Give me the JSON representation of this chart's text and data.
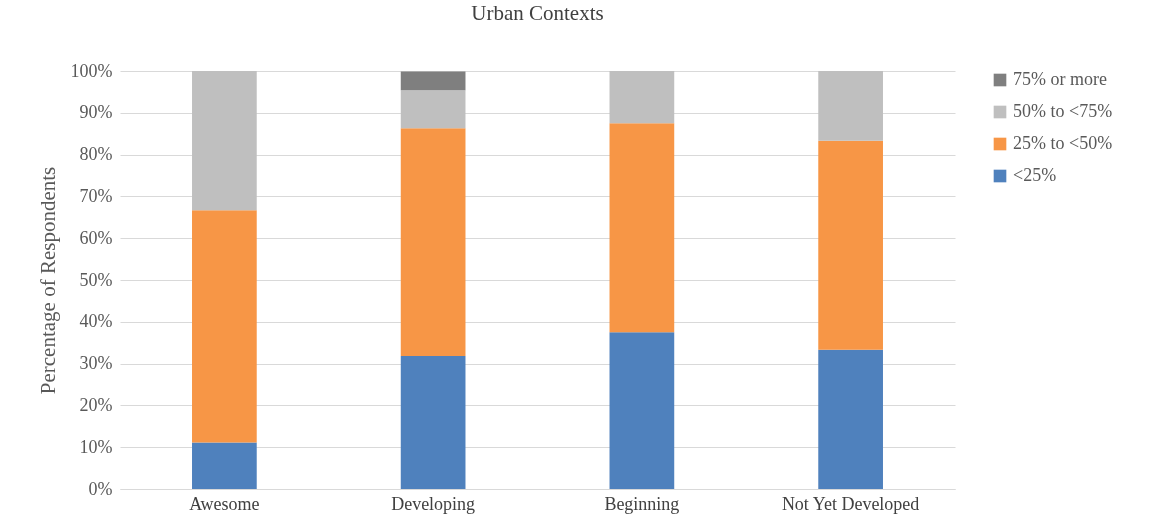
{
  "chart_data": {
    "type": "bar",
    "title": "Urban Contexts",
    "ylabel": "Percentage of Respondents",
    "stacked": true,
    "categories": [
      "Awesome",
      "Developing",
      "Beginning",
      "Not Yet Developed"
    ],
    "series": [
      {
        "name": "<25%",
        "color": "#4f81bd",
        "values": [
          11.1,
          31.8,
          37.5,
          33.3
        ]
      },
      {
        "name": "25% to <50%",
        "color": "#f79646",
        "values": [
          55.6,
          54.5,
          50,
          50
        ]
      },
      {
        "name": "50% to <75%",
        "color": "#bfbfbf",
        "values": [
          33.3,
          9.1,
          12.5,
          16.7
        ]
      },
      {
        "name": "75% or more",
        "color": "#7f7f7f",
        "values": [
          0,
          4.5,
          0,
          0
        ]
      }
    ],
    "ylim": [
      0,
      100
    ],
    "yticks": [
      {
        "value": 0,
        "label": "0%"
      },
      {
        "value": 10,
        "label": "10%"
      },
      {
        "value": 20,
        "label": "20%"
      },
      {
        "value": 30,
        "label": "30%"
      },
      {
        "value": 40,
        "label": "40%"
      },
      {
        "value": 50,
        "label": "50%"
      },
      {
        "value": 60,
        "label": "60%"
      },
      {
        "value": 70,
        "label": "70%"
      },
      {
        "value": 80,
        "label": "80%"
      },
      {
        "value": 90,
        "label": "90%"
      },
      {
        "value": 100,
        "label": "100%"
      }
    ],
    "grid": "y",
    "legend": "right"
  }
}
